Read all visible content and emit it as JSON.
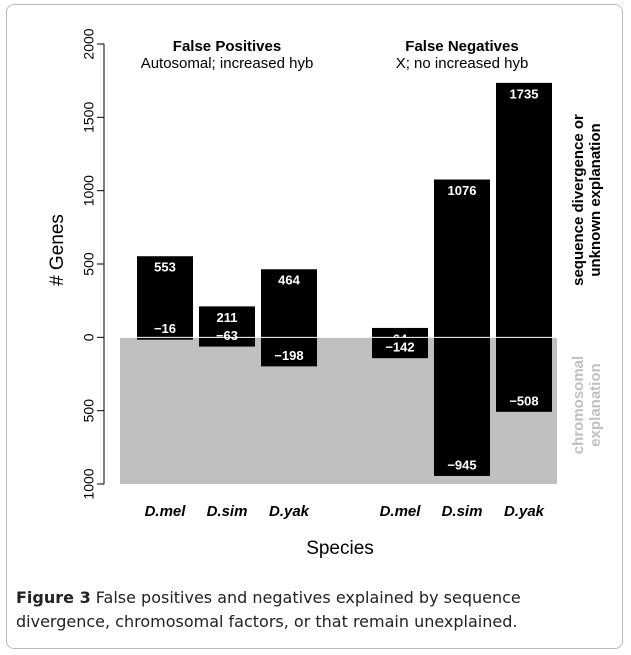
{
  "chart_data": {
    "type": "bar",
    "ylabel": "# Genes",
    "xlabel": "Species",
    "groups": [
      {
        "title": "False Positives",
        "subtitle": "Autosomal; increased hyb",
        "categories": [
          "D.mel",
          "D.sim",
          "D.yak"
        ]
      },
      {
        "title": "False Negatives",
        "subtitle": "X; no increased hyb",
        "categories": [
          "D.mel",
          "D.sim",
          "D.yak"
        ]
      }
    ],
    "series": [
      {
        "color": "#000000",
        "values": [
          553,
          211,
          464,
          64,
          1076,
          1735
        ]
      },
      {
        "color": "#000000",
        "values": [
          -16,
          -63,
          -198,
          -142,
          -945,
          -508
        ],
        "value_labels": [
          "−16",
          "−63",
          "−198",
          "−142",
          "−945",
          "−508"
        ]
      }
    ],
    "ylim": [
      -1000,
      2150
    ],
    "yticks": [
      2000,
      1500,
      1000,
      500,
      0,
      {
        "value": -500,
        "label": "500"
      },
      {
        "value": -1000,
        "label": "1000"
      }
    ],
    "negative_shade": "#c0c0c0",
    "annotations": {
      "upper": [
        "sequence divergence or",
        "unknown explanation"
      ],
      "lower": [
        "chromosomal",
        "explanation"
      ]
    }
  },
  "caption": {
    "label": "Figure 3",
    "text": "False positives and negatives explained by sequence divergence, chromosomal factors, or that remain unexplained."
  }
}
